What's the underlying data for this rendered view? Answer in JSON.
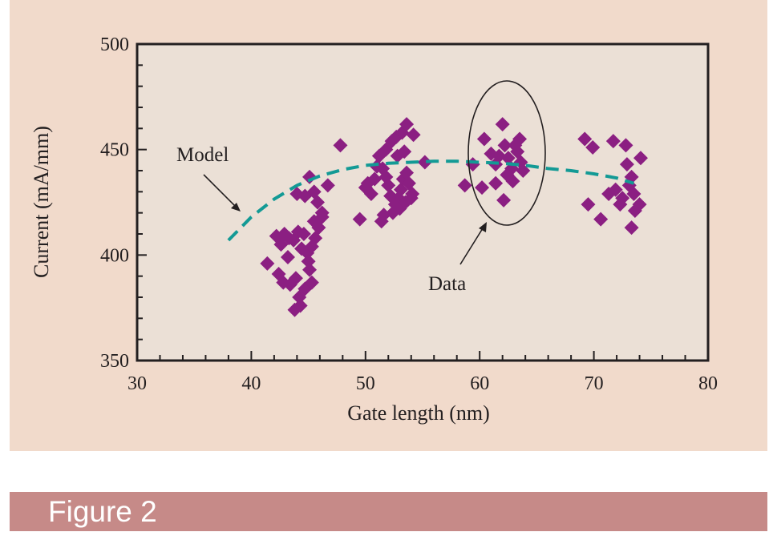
{
  "figure": {
    "caption": "Figure 2",
    "colors": {
      "panel_background": "#f1dacb",
      "plot_background": "#ebe0d6",
      "caption_bar": "#c68a88",
      "data_marker": "#8b1f82",
      "model_line": "#139a95"
    }
  },
  "chart_data": {
    "type": "scatter",
    "title": "",
    "xlabel": "Gate length  (nm)",
    "ylabel": "Current  (mA/mm)",
    "xlim": [
      30,
      80
    ],
    "ylim": [
      350,
      500
    ],
    "x_ticks": [
      "30",
      "40",
      "50",
      "60",
      "70",
      "80"
    ],
    "y_ticks": [
      "350",
      "400",
      "450",
      "500"
    ],
    "grid": false,
    "annotations": {
      "model_label": "Model",
      "data_label": "Data"
    },
    "series": [
      {
        "name": "Data",
        "marker": "diamond",
        "points": [
          [
            42.2,
            409
          ],
          [
            42.6,
            405
          ],
          [
            42.9,
            410
          ],
          [
            43.3,
            408
          ],
          [
            43.7,
            407
          ],
          [
            44.1,
            411
          ],
          [
            44.6,
            410
          ],
          [
            44.9,
            401
          ],
          [
            45.3,
            404
          ],
          [
            45.6,
            408
          ],
          [
            45.9,
            413
          ],
          [
            46.2,
            418
          ],
          [
            45.5,
            416
          ],
          [
            43.2,
            399
          ],
          [
            44.4,
            403
          ],
          [
            41.4,
            396
          ],
          [
            42.4,
            391
          ],
          [
            42.8,
            387
          ],
          [
            43.4,
            386
          ],
          [
            43.9,
            389
          ],
          [
            44.2,
            380
          ],
          [
            44.7,
            384
          ],
          [
            45.3,
            387
          ],
          [
            45.1,
            393
          ],
          [
            45.0,
            397
          ],
          [
            43.8,
            374
          ],
          [
            44.3,
            376
          ],
          [
            46.2,
            420
          ],
          [
            46.7,
            433
          ],
          [
            44.0,
            429
          ],
          [
            45.1,
            437
          ],
          [
            45.5,
            430
          ],
          [
            44.7,
            428
          ],
          [
            45.8,
            425
          ],
          [
            47.8,
            452
          ],
          [
            49.5,
            417
          ],
          [
            50.0,
            432
          ],
          [
            50.5,
            429
          ],
          [
            50.8,
            436
          ],
          [
            51.0,
            442
          ],
          [
            51.2,
            447
          ],
          [
            51.5,
            441
          ],
          [
            51.8,
            437
          ],
          [
            52.0,
            433
          ],
          [
            52.2,
            428
          ],
          [
            52.6,
            424
          ],
          [
            52.9,
            427
          ],
          [
            53.1,
            431
          ],
          [
            53.3,
            436
          ],
          [
            53.6,
            439
          ],
          [
            53.8,
            434
          ],
          [
            54.1,
            429
          ],
          [
            51.4,
            416
          ],
          [
            51.6,
            419
          ],
          [
            52.4,
            420
          ],
          [
            53.0,
            422
          ],
          [
            53.5,
            425
          ],
          [
            54.0,
            427
          ],
          [
            52.3,
            454
          ],
          [
            52.7,
            456
          ],
          [
            53.2,
            458
          ],
          [
            53.6,
            462
          ],
          [
            54.2,
            457
          ],
          [
            53.4,
            449
          ],
          [
            52.8,
            447
          ],
          [
            55.2,
            444
          ],
          [
            51.8,
            450
          ],
          [
            50.2,
            434
          ],
          [
            58.7,
            433
          ],
          [
            59.4,
            443
          ],
          [
            60.2,
            432
          ],
          [
            60.4,
            455
          ],
          [
            61.0,
            448
          ],
          [
            61.4,
            443
          ],
          [
            61.7,
            447
          ],
          [
            62.0,
            462
          ],
          [
            62.2,
            452
          ],
          [
            62.5,
            446
          ],
          [
            62.8,
            441
          ],
          [
            63.1,
            452
          ],
          [
            63.3,
            449
          ],
          [
            63.5,
            455
          ],
          [
            63.8,
            440
          ],
          [
            62.1,
            426
          ],
          [
            61.4,
            434
          ],
          [
            62.9,
            435
          ],
          [
            63.6,
            444
          ],
          [
            62.4,
            438
          ],
          [
            69.2,
            455
          ],
          [
            69.5,
            424
          ],
          [
            69.9,
            451
          ],
          [
            70.6,
            417
          ],
          [
            71.3,
            429
          ],
          [
            71.7,
            454
          ],
          [
            71.9,
            431
          ],
          [
            72.3,
            424
          ],
          [
            72.5,
            427
          ],
          [
            72.8,
            452
          ],
          [
            73.1,
            433
          ],
          [
            73.3,
            437
          ],
          [
            73.5,
            429
          ],
          [
            73.6,
            421
          ],
          [
            73.3,
            413
          ],
          [
            74.1,
            446
          ],
          [
            72.9,
            443
          ],
          [
            74.0,
            424
          ]
        ]
      },
      {
        "name": "Model",
        "line_style": "dashed",
        "x": [
          38,
          40,
          42,
          44,
          46,
          48,
          50,
          52,
          54,
          56,
          58,
          60,
          62,
          64,
          66,
          68,
          70,
          72,
          73.5
        ],
        "y": [
          407,
          418,
          426.5,
          433,
          437.5,
          440.5,
          442.5,
          443.5,
          444,
          444.5,
          444.5,
          444,
          443.5,
          442.5,
          441,
          440,
          438.5,
          436.5,
          434
        ]
      }
    ]
  }
}
